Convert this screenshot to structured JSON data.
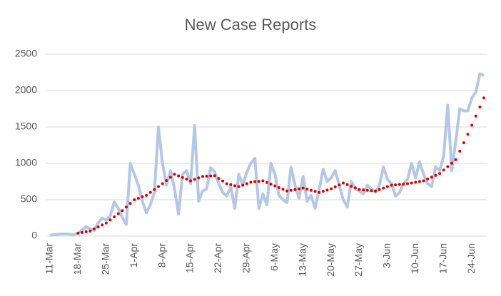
{
  "chart_data": {
    "type": "line",
    "title": "New Case Reports",
    "categories": [
      "11-Mar",
      null,
      null,
      null,
      null,
      null,
      null,
      "18-Mar",
      null,
      null,
      null,
      null,
      null,
      null,
      "25-Mar",
      null,
      null,
      null,
      null,
      null,
      null,
      "1-Apr",
      null,
      null,
      null,
      null,
      null,
      null,
      "8-Apr",
      null,
      null,
      null,
      null,
      null,
      null,
      "15-Apr",
      null,
      null,
      null,
      null,
      null,
      null,
      "22-Apr",
      null,
      null,
      null,
      null,
      null,
      null,
      "29-Apr",
      null,
      null,
      null,
      null,
      null,
      null,
      "6-May",
      null,
      null,
      null,
      null,
      null,
      null,
      "13-May",
      null,
      null,
      null,
      null,
      null,
      null,
      "20-May",
      null,
      null,
      null,
      null,
      null,
      null,
      "27-May",
      null,
      null,
      null,
      null,
      null,
      null,
      "3-Jun",
      null,
      null,
      null,
      null,
      null,
      null,
      "10-Jun",
      null,
      null,
      null,
      null,
      null,
      null,
      "17-Jun",
      null,
      null,
      null,
      null,
      null,
      null,
      "24-Jun",
      null,
      null,
      null
    ],
    "series": [
      {
        "color": "#b4c7e7",
        "style": "solid",
        "values": [
          10,
          20,
          25,
          30,
          30,
          25,
          20,
          40,
          80,
          130,
          100,
          80,
          180,
          250,
          220,
          280,
          470,
          380,
          260,
          160,
          1000,
          850,
          700,
          480,
          320,
          430,
          600,
          1500,
          1000,
          700,
          900,
          650,
          300,
          850,
          900,
          720,
          1520,
          480,
          620,
          650,
          940,
          880,
          720,
          600,
          550,
          680,
          380,
          850,
          700,
          880,
          1000,
          1070,
          380,
          580,
          430,
          1000,
          850,
          560,
          500,
          460,
          950,
          700,
          520,
          820,
          480,
          560,
          380,
          640,
          920,
          750,
          800,
          900,
          700,
          500,
          400,
          750,
          650,
          620,
          580,
          700,
          650,
          600,
          700,
          950,
          780,
          720,
          550,
          600,
          720,
          780,
          1000,
          800,
          1020,
          850,
          720,
          680,
          950,
          900,
          1100,
          1800,
          900,
          1300,
          1750,
          1720,
          1720,
          1900,
          1980,
          2230,
          2210
        ]
      },
      {
        "color": "#e00000",
        "style": "dotted",
        "values": [
          null,
          null,
          null,
          null,
          null,
          null,
          null,
          40,
          50,
          60,
          70,
          98,
          125,
          153,
          180,
          223,
          265,
          308,
          350,
          400,
          450,
          500,
          520,
          540,
          560,
          600,
          640,
          680,
          720,
          763,
          807,
          850,
          828,
          805,
          783,
          760,
          780,
          800,
          820,
          823,
          827,
          830,
          793,
          757,
          720,
          707,
          693,
          680,
          700,
          720,
          740,
          747,
          753,
          760,
          737,
          713,
          690,
          667,
          643,
          620,
          630,
          640,
          650,
          660,
          645,
          630,
          615,
          600,
          617,
          633,
          650,
          677,
          703,
          730,
          708,
          685,
          663,
          640,
          635,
          630,
          625,
          620,
          640,
          660,
          680,
          700,
          705,
          710,
          715,
          720,
          730,
          740,
          750,
          760,
          785,
          810,
          835,
          860,
          908,
          955,
          1003,
          1050,
          1167,
          1283,
          1400,
          1525,
          1650,
          1775,
          1900
        ]
      }
    ],
    "ylim": [
      0,
      2500
    ],
    "yticks": [
      0,
      500,
      1000,
      1500,
      2000,
      2500
    ],
    "grid": true
  }
}
